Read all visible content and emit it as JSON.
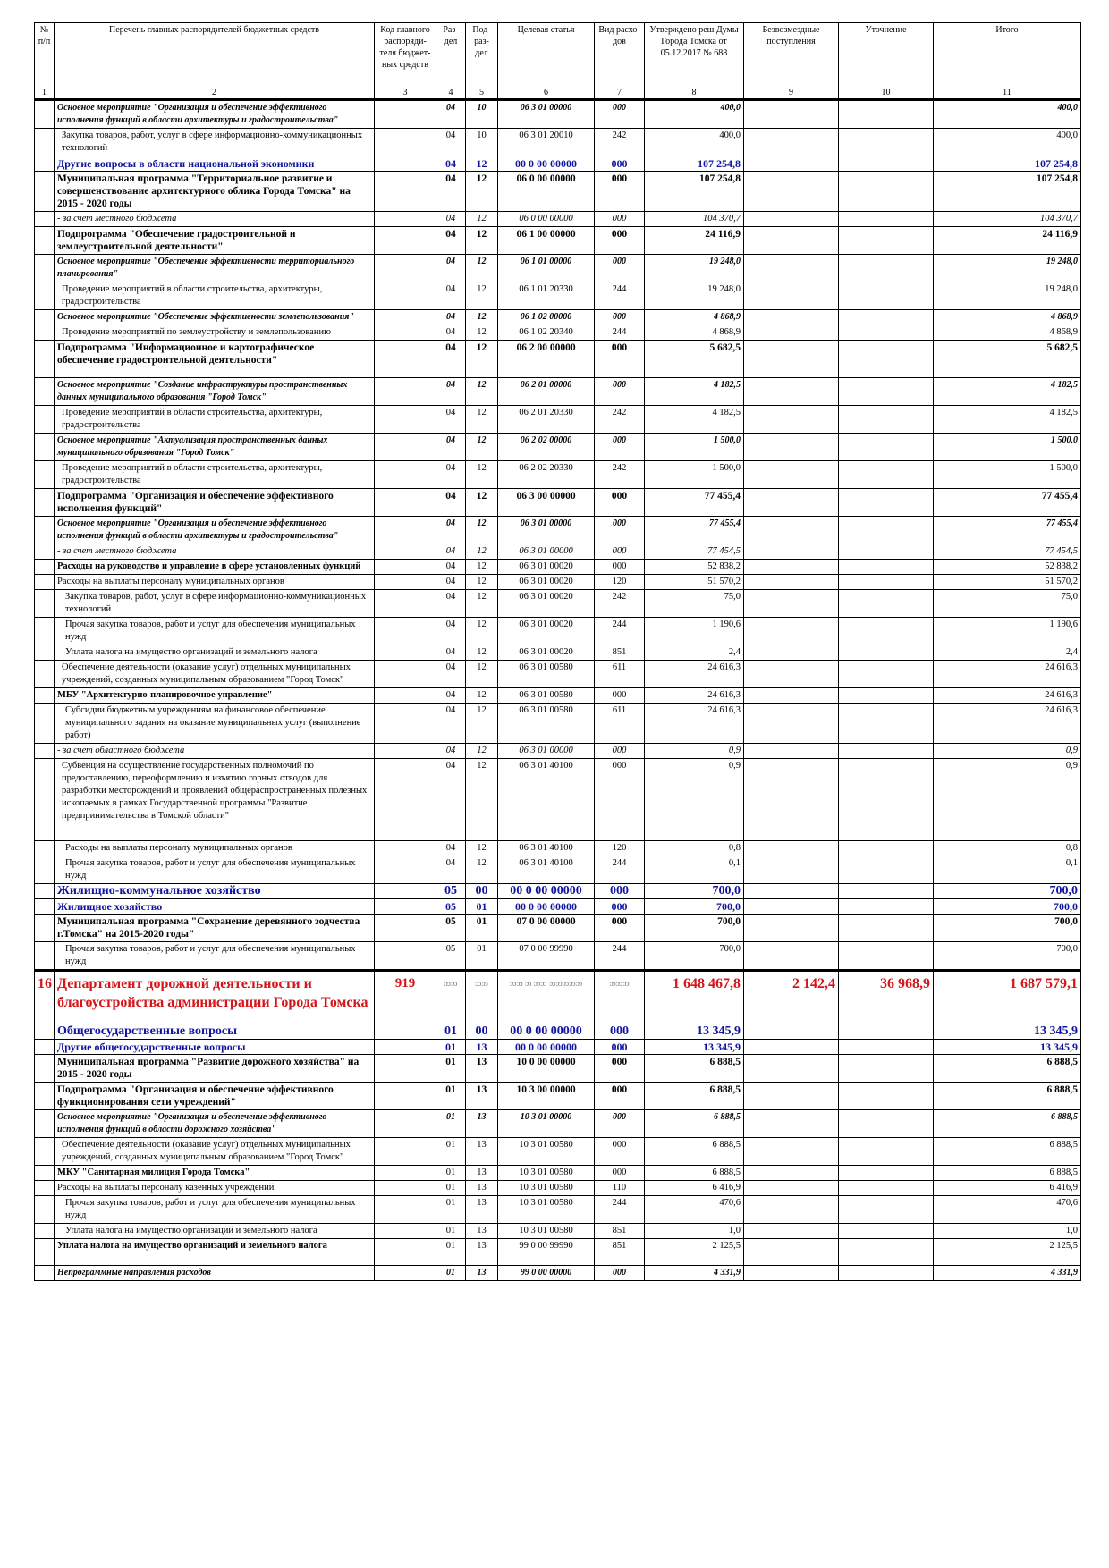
{
  "headers": {
    "num": "№ п/п",
    "name": "Перечень главных распорядителей бюджетных средств",
    "code": "Код главного распоряди-теля бюджет-ных средств",
    "razdel": "Раз-дел",
    "podrazdel": "Под-раз-дел",
    "target": "Целевая статья",
    "vid": "Вид расхо-дов",
    "approved": "Утверждено реш Думы Города Томска от 05.12.2017 № 688",
    "free": "Безвозмездные поступления",
    "clarif": "Уточнение",
    "total": "Итого"
  },
  "col_numbers": [
    "1",
    "2",
    "3",
    "4",
    "5",
    "6",
    "7",
    "8",
    "9",
    "10",
    "11"
  ],
  "rows": [
    {
      "style": "bolditalic",
      "name": "Основное мероприятие \"Организация и обеспечение эффективного исполнения функций в области архитектуры и градостроительства\"",
      "razdel": "04",
      "podrazdel": "10",
      "target": "06 3 01 00000",
      "vid": "000",
      "approved": "400,0",
      "total": "400,0"
    },
    {
      "style": "plain",
      "ind": "1",
      "name": "Закупка товаров, работ, услуг в сфере информационно-коммуникационных технологий",
      "razdel": "04",
      "podrazdel": "10",
      "target": "06 3 01 20010",
      "vid": "242",
      "approved": "400,0",
      "total": "400,0"
    },
    {
      "style": "blue",
      "name": "Другие вопросы в области национальной экономики",
      "razdel": "04",
      "podrazdel": "12",
      "target": "00 0 00 00000",
      "vid": "000",
      "approved": "107 254,8",
      "total": "107 254,8"
    },
    {
      "style": "bold",
      "name": "Муниципальная программа \"Территориальное развитие и совершенствование архитектурного облика Города Томска\" на 2015 - 2020 годы",
      "razdel": "04",
      "podrazdel": "12",
      "target": "06 0 00 00000",
      "vid": "000",
      "approved": "107 254,8",
      "total": "107 254,8"
    },
    {
      "style": "italic",
      "name": "- за счет местного бюджета",
      "razdel": "04",
      "podrazdel": "12",
      "target": "06 0 00 00000",
      "vid": "000",
      "approved": "104 370,7",
      "total": "104 370,7"
    },
    {
      "style": "bold",
      "name": "Подпрограмма \"Обеспечение градостроительной и землеустроительной деятельности\"",
      "razdel": "04",
      "podrazdel": "12",
      "target": "06 1 00 00000",
      "vid": "000",
      "approved": "24 116,9",
      "total": "24 116,9"
    },
    {
      "style": "bolditalic",
      "name": "Основное мероприятие \"Обеспечение эффективности территориального планирования\"",
      "razdel": "04",
      "podrazdel": "12",
      "target": "06 1 01 00000",
      "vid": "000",
      "approved": "19 248,0",
      "total": "19 248,0"
    },
    {
      "style": "plain",
      "ind": "1",
      "name": "Проведение мероприятий в области строительства, архитектуры, градостроительства",
      "razdel": "04",
      "podrazdel": "12",
      "target": "06 1 01 20330",
      "vid": "244",
      "approved": "19 248,0",
      "total": "19 248,0"
    },
    {
      "style": "bolditalic",
      "name": "Основное мероприятие \"Обеспечение эффективности землепользования\"",
      "razdel": "04",
      "podrazdel": "12",
      "target": "06 1 02 00000",
      "vid": "000",
      "approved": "4 868,9",
      "total": "4 868,9"
    },
    {
      "style": "plain",
      "ind": "1",
      "name": "Проведение мероприятий по землеустройству и землепользованию",
      "razdel": "04",
      "podrazdel": "12",
      "target": "06 1 02 20340",
      "vid": "244",
      "approved": "4 868,9",
      "total": "4 868,9"
    },
    {
      "style": "bold",
      "name": "Подпрограмма \"Информационное и картографическое обеспечение градостроительной деятельности\"",
      "razdel": "04",
      "podrazdel": "12",
      "target": "06 2 00 00000",
      "vid": "000",
      "approved": "5 682,5",
      "total": "5 682,5",
      "h": 42
    },
    {
      "style": "bolditalic",
      "name": "Основное мероприятие \"Создание инфраструктуры пространственных данных муниципального образования \"Город Томск\"",
      "razdel": "04",
      "podrazdel": "12",
      "target": "06 2 01 00000",
      "vid": "000",
      "approved": "4 182,5",
      "total": "4 182,5"
    },
    {
      "style": "plain",
      "ind": "1",
      "name": "Проведение мероприятий в области строительства, архитектуры, градостроительства",
      "razdel": "04",
      "podrazdel": "12",
      "target": "06 2 01 20330",
      "vid": "242",
      "approved": "4 182,5",
      "total": "4 182,5"
    },
    {
      "style": "bolditalic",
      "name": "Основное мероприятие \"Актуализация пространственных данных муниципального образования \"Город Томск\"",
      "razdel": "04",
      "podrazdel": "12",
      "target": "06 2 02 00000",
      "vid": "000",
      "approved": "1 500,0",
      "total": "1 500,0"
    },
    {
      "style": "plain",
      "ind": "1",
      "name": "Проведение мероприятий в области строительства, архитектуры, градостроительства",
      "razdel": "04",
      "podrazdel": "12",
      "target": "06 2 02 20330",
      "vid": "242",
      "approved": "1 500,0",
      "total": "1 500,0"
    },
    {
      "style": "bold",
      "name": "Подпрограмма \"Организация и обеспечение эффективного исполнения функций\"",
      "razdel": "04",
      "podrazdel": "12",
      "target": "06 3 00 00000",
      "vid": "000",
      "approved": "77 455,4",
      "total": "77 455,4"
    },
    {
      "style": "bolditalic",
      "name": "Основное мероприятие \"Организация и обеспечение эффективного исполнения функций в области архитектуры и градостроительства\"",
      "razdel": "04",
      "podrazdel": "12",
      "target": "06 3 01 00000",
      "vid": "000",
      "approved": "77 455,4",
      "total": "77 455,4"
    },
    {
      "style": "italic",
      "name": "- за счет местного бюджета",
      "razdel": "04",
      "podrazdel": "12",
      "target": "06 3 01 00000",
      "vid": "000",
      "approved": "77 454,5",
      "total": "77 454,5"
    },
    {
      "style": "semibold",
      "name": "Расходы на руководство и управление в сфере установленных функций",
      "razdel": "04",
      "podrazdel": "12",
      "target": "06 3 01 00020",
      "vid": "000",
      "approved": "52 838,2",
      "total": "52 838,2"
    },
    {
      "style": "plain",
      "name": "Расходы на выплаты персоналу муниципальных органов",
      "razdel": "04",
      "podrazdel": "12",
      "target": "06 3 01 00020",
      "vid": "120",
      "approved": "51 570,2",
      "total": "51 570,2"
    },
    {
      "style": "plain",
      "ind": "2",
      "name": "Закупка товаров, работ, услуг в сфере информационно-коммуникационных технологий",
      "razdel": "04",
      "podrazdel": "12",
      "target": "06 3 01 00020",
      "vid": "242",
      "approved": "75,0",
      "total": "75,0"
    },
    {
      "style": "plain",
      "ind": "2",
      "name": "Прочая закупка товаров, работ и услуг для обеспечения муниципальных нужд",
      "razdel": "04",
      "podrazdel": "12",
      "target": "06 3 01 00020",
      "vid": "244",
      "approved": "1 190,6",
      "total": "1 190,6"
    },
    {
      "style": "plain",
      "ind": "2",
      "name": "Уплата налога на имущество организаций и земельного налога",
      "razdel": "04",
      "podrazdel": "12",
      "target": "06 3 01 00020",
      "vid": "851",
      "approved": "2,4",
      "total": "2,4"
    },
    {
      "style": "plain",
      "ind": "1",
      "name": "Обеспечение деятельности (оказание услуг) отдельных муниципальных учреждений, созданных муниципальным образованием \"Город Томск\"",
      "razdel": "04",
      "podrazdel": "12",
      "target": "06 3 01 00580",
      "vid": "611",
      "approved": "24 616,3",
      "total": "24 616,3"
    },
    {
      "style": "semibold",
      "name": "МБУ \"Архитектурно-планировочное управление\"",
      "razdel": "04",
      "podrazdel": "12",
      "target": "06 3 01 00580",
      "vid": "000",
      "approved": "24 616,3",
      "total": "24 616,3"
    },
    {
      "style": "plain",
      "ind": "2",
      "name": "Субсидии бюджетным учреждениям на финансовое обеспечение муниципального задания на оказание муниципальных услуг (выполнение работ)",
      "razdel": "04",
      "podrazdel": "12",
      "target": "06 3 01 00580",
      "vid": "611",
      "approved": "24 616,3",
      "total": "24 616,3"
    },
    {
      "style": "italic",
      "name": "- за счет областного бюджета",
      "razdel": "04",
      "podrazdel": "12",
      "target": "06 3 01 00000",
      "vid": "000",
      "approved": "0,9",
      "total": "0,9"
    },
    {
      "style": "plain",
      "ind": "1",
      "name": "Субвенция на осуществление государственных полномочий по предоставлению, переоформлению и изъятию горных отводов для разработки месторождений и проявлений общераспространенных полезных ископаемых в рамках Государственной программы \"Развитие предпринимательства в Томской области\"",
      "razdel": "04",
      "podrazdel": "12",
      "target": "06 3 01 40100",
      "vid": "000",
      "approved": "0,9",
      "total": "0,9",
      "h": 92
    },
    {
      "style": "plain",
      "ind": "2",
      "name": "Расходы на выплаты персоналу муниципальных органов",
      "razdel": "04",
      "podrazdel": "12",
      "target": "06 3 01 40100",
      "vid": "120",
      "approved": "0,8",
      "total": "0,8"
    },
    {
      "style": "plain",
      "ind": "2",
      "name": "Прочая закупка товаров, работ и услуг для обеспечения муниципальных нужд",
      "razdel": "04",
      "podrazdel": "12",
      "target": "06 3 01 40100",
      "vid": "244",
      "approved": "0,1",
      "total": "0,1"
    },
    {
      "style": "blue2",
      "name": "Жилищно-коммунальное хозяйство",
      "razdel": "05",
      "podrazdel": "00",
      "target": "00 0 00 00000",
      "vid": "000",
      "approved": "700,0",
      "total": "700,0"
    },
    {
      "style": "blue",
      "name": "Жилищное хозяйство",
      "razdel": "05",
      "podrazdel": "01",
      "target": "00 0 00 00000",
      "vid": "000",
      "approved": "700,0",
      "total": "700,0"
    },
    {
      "style": "bold",
      "name": "Муниципальная программа \"Сохранение деревянного зодчества г.Томска\" на 2015-2020 годы\"",
      "razdel": "05",
      "podrazdel": "01",
      "target": "07 0 00 00000",
      "vid": "000",
      "approved": "700,0",
      "total": "700,0"
    },
    {
      "style": "plain",
      "ind": "2",
      "name": "Прочая закупка товаров, работ и услуг для обеспечения муниципальных нужд",
      "razdel": "05",
      "podrazdel": "01",
      "target": "07 0 00 99990",
      "vid": "244",
      "approved": "700,0",
      "total": "700,0"
    },
    {
      "style": "dept",
      "num": "16",
      "name": "Департамент дорожной деятельности и благоустройства администрации Города Томска",
      "code": "919",
      "razdel": "ᦘᦘ",
      "podrazdel": "ᦘᦘ",
      "target": "ᦘᦘ ᦘ ᦘᦘ ᦘᦘᦘᦘᦘ",
      "vid": "ᦘᦘᦘ",
      "approved": "1 648 467,8",
      "free": "2 142,4",
      "clarif": "36 968,9",
      "total": "1 687 579,1",
      "h": 60
    },
    {
      "style": "blue2",
      "name": "Общегосударственные вопросы",
      "razdel": "01",
      "podrazdel": "00",
      "target": "00 0 00 00000",
      "vid": "000",
      "approved": "13 345,9",
      "total": "13 345,9"
    },
    {
      "style": "blue",
      "name": "Другие общегосударственные вопросы",
      "razdel": "01",
      "podrazdel": "13",
      "target": "00 0 00 00000",
      "vid": "000",
      "approved": "13 345,9",
      "total": "13 345,9"
    },
    {
      "style": "bold",
      "name": "Муниципальная программа \"Развитие дорожного хозяйства\" на 2015 - 2020 годы",
      "razdel": "01",
      "podrazdel": "13",
      "target": "10 0 00 00000",
      "vid": "000",
      "approved": "6 888,5",
      "total": "6 888,5"
    },
    {
      "style": "bold",
      "name": "Подпрограмма \"Организация и обеспечение эффективного функционирования сети учреждений\"",
      "razdel": "01",
      "podrazdel": "13",
      "target": "10 3 00 00000",
      "vid": "000",
      "approved": "6 888,5",
      "total": "6 888,5"
    },
    {
      "style": "bolditalic",
      "name": "Основное мероприятие \"Организация и обеспечение эффективного исполнения функций в области дорожного хозяйства\"",
      "razdel": "01",
      "podrazdel": "13",
      "target": "10 3 01 00000",
      "vid": "000",
      "approved": "6 888,5",
      "total": "6 888,5"
    },
    {
      "style": "plain",
      "ind": "1",
      "name": "Обеспечение деятельности (оказание услуг) отдельных муниципальных учреждений, созданных муниципальным образованием \"Город Томск\"",
      "razdel": "01",
      "podrazdel": "13",
      "target": "10 3 01 00580",
      "vid": "000",
      "approved": "6 888,5",
      "total": "6 888,5"
    },
    {
      "style": "semibold",
      "name": "МКУ \"Санитарная милиция Города Томска\"",
      "razdel": "01",
      "podrazdel": "13",
      "target": "10 3 01 00580",
      "vid": "000",
      "approved": "6 888,5",
      "total": "6 888,5"
    },
    {
      "style": "plain",
      "name": "Расходы на выплаты персоналу казенных учреждений",
      "razdel": "01",
      "podrazdel": "13",
      "target": "10 3 01 00580",
      "vid": "110",
      "approved": "6 416,9",
      "total": "6 416,9"
    },
    {
      "style": "plain",
      "ind": "2",
      "name": "Прочая закупка товаров, работ и услуг для обеспечения муниципальных нужд",
      "razdel": "01",
      "podrazdel": "13",
      "target": "10 3 01 00580",
      "vid": "244",
      "approved": "470,6",
      "total": "470,6"
    },
    {
      "style": "plain",
      "ind": "2",
      "name": "Уплата налога на имущество организаций и земельного налога",
      "razdel": "01",
      "podrazdel": "13",
      "target": "10 3 01 00580",
      "vid": "851",
      "approved": "1,0",
      "total": "1,0"
    },
    {
      "style": "semibold",
      "name": "Уплата налога на имущество организаций и земельного налога",
      "razdel": "01",
      "podrazdel": "13",
      "target": "99 0 00 99990",
      "vid": "851",
      "approved": "2 125,5",
      "total": "2 125,5",
      "h": 30
    },
    {
      "style": "bolditalic",
      "name": "Непрограммные направления расходов",
      "razdel": "01",
      "podrazdel": "13",
      "target": "99 0 00 00000",
      "vid": "000",
      "approved": "4 331,9",
      "total": "4 331,9"
    }
  ]
}
